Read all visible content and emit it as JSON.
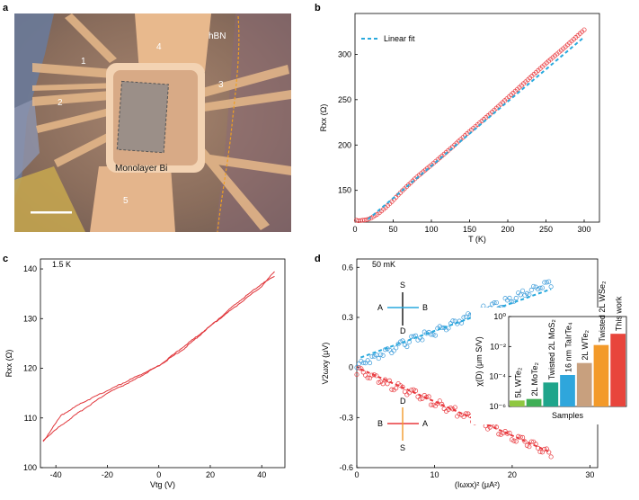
{
  "figure": {
    "panels": {
      "a": {
        "label": "a",
        "electrodes": [
          "1",
          "2",
          "3",
          "4",
          "5"
        ],
        "material_label": "Monolayer Bi",
        "hbn_label": "hBN"
      },
      "b": {
        "label": "b"
      },
      "c": {
        "label": "c",
        "temperature": "1.5 K"
      },
      "d": {
        "label": "d",
        "temperature": "50 mK",
        "geometry_top": {
          "top": "S",
          "left": "A",
          "right": "B",
          "bottom": "D"
        },
        "geometry_bottom": {
          "top": "D",
          "left": "B",
          "right": "A",
          "bottom": "S"
        }
      }
    }
  },
  "chart_data": [
    {
      "panel": "b",
      "type": "scatter",
      "xlabel": "T (K)",
      "ylabel": "Rxx (Ω)",
      "xlim": [
        0,
        320
      ],
      "ylim": [
        115,
        345
      ],
      "xticks": [
        0,
        50,
        100,
        150,
        200,
        250,
        300
      ],
      "yticks": [
        150,
        200,
        250,
        300
      ],
      "legend": {
        "label": "Linear fit",
        "position": "top-left"
      },
      "series": [
        {
          "name": "Rxx",
          "color": "#e8383d",
          "style": "open-circles",
          "x": [
            1.8,
            5,
            10,
            15,
            20,
            30,
            40,
            50,
            60,
            70,
            80,
            90,
            100,
            125,
            150,
            175,
            200,
            225,
            250,
            275,
            300
          ],
          "y": [
            117,
            116.5,
            117,
            117.5,
            119,
            124,
            131,
            139,
            148,
            156,
            164,
            171,
            178,
            196,
            215,
            233,
            252,
            271,
            290,
            308,
            327
          ]
        },
        {
          "name": "Linear fit",
          "color": "#29a9dd",
          "style": "dashed",
          "x": [
            17,
            300
          ],
          "y": [
            118,
            319
          ]
        }
      ]
    },
    {
      "panel": "c",
      "type": "line",
      "xlabel": "Vtg (V)",
      "ylabel": "Rxx (Ω)",
      "xlim": [
        -46,
        49
      ],
      "ylim": [
        100,
        142
      ],
      "xticks": [
        -40,
        -20,
        0,
        20,
        40
      ],
      "yticks": [
        100,
        110,
        120,
        130,
        140
      ],
      "series": [
        {
          "name": "forward sweep",
          "color": "#e0353a",
          "x": [
            -45,
            -38,
            -30,
            -20,
            -10,
            0,
            10,
            20,
            30,
            40,
            45
          ],
          "y": [
            105.5,
            108.5,
            111.5,
            115,
            117.5,
            120.5,
            124,
            128.5,
            132.5,
            136.5,
            139.5
          ]
        },
        {
          "name": "backward sweep",
          "color": "#e0353a",
          "x": [
            45,
            40,
            30,
            20,
            10,
            0,
            -10,
            -20,
            -30,
            -38,
            -45
          ],
          "y": [
            138.5,
            137,
            133,
            128.5,
            124.5,
            120.5,
            118,
            115.5,
            113,
            110.5,
            105.2
          ]
        }
      ]
    },
    {
      "panel": "d",
      "type": "scatter",
      "xlabel": "(Iωxx)² (μA²)",
      "ylabel": "V2ωxy (μV)",
      "xlim": [
        0,
        31
      ],
      "ylim": [
        -0.6,
        0.65
      ],
      "xticks": [
        0,
        10,
        20,
        30
      ],
      "yticks": [
        -0.6,
        -0.3,
        0,
        0.3,
        0.6
      ],
      "series": [
        {
          "name": "A-B / S-D",
          "color": "#3a9ad9",
          "style": "open-circles",
          "x": [
            0,
            2,
            4,
            6,
            8,
            10,
            12,
            14,
            16,
            18,
            20,
            22,
            24,
            25
          ],
          "y": [
            0.0,
            0.06,
            0.1,
            0.14,
            0.18,
            0.21,
            0.26,
            0.3,
            0.34,
            0.37,
            0.41,
            0.45,
            0.49,
            0.5
          ]
        },
        {
          "name": "fit (blue)",
          "color": "#29a9dd",
          "style": "dashed",
          "x": [
            0.5,
            25
          ],
          "y": [
            0.06,
            0.47
          ]
        },
        {
          "name": "B-A / D-S",
          "color": "#e8383d",
          "style": "open-circles",
          "x": [
            0,
            2,
            4,
            6,
            8,
            10,
            12,
            14,
            16,
            18,
            20,
            22,
            24,
            25
          ],
          "y": [
            -0.02,
            -0.06,
            -0.1,
            -0.13,
            -0.17,
            -0.21,
            -0.25,
            -0.29,
            -0.33,
            -0.37,
            -0.41,
            -0.45,
            -0.49,
            -0.52
          ]
        },
        {
          "name": "fit (red)",
          "color": "#e8383d",
          "style": "dashed",
          "x": [
            0.5,
            25
          ],
          "y": [
            -0.01,
            -0.51
          ]
        }
      ]
    },
    {
      "panel": "d-inset",
      "type": "bar",
      "scale": "log",
      "xlabel": "Samples",
      "ylabel": "χ(D) (μm S/V)",
      "ylim_exp": [
        -6,
        0
      ],
      "yticks": [
        "10⁻⁶",
        "10⁻⁴",
        "10⁻²",
        "10⁰"
      ],
      "categories": [
        "5L WTe₂",
        "2L MoTe₂",
        "Twisted 2L MoS₂",
        "16 nm TaIrTe₄",
        "2L WTe₂",
        "Twisted 2L WSe₂",
        "This work"
      ],
      "values_log10": [
        -5.6,
        -5.5,
        -4.4,
        -3.9,
        -3.1,
        -1.9,
        -1.15
      ],
      "colors": [
        "#8fc740",
        "#3fae56",
        "#1fa58b",
        "#2fa6dc",
        "#c8a07e",
        "#f39a2a",
        "#e8453c"
      ]
    }
  ]
}
